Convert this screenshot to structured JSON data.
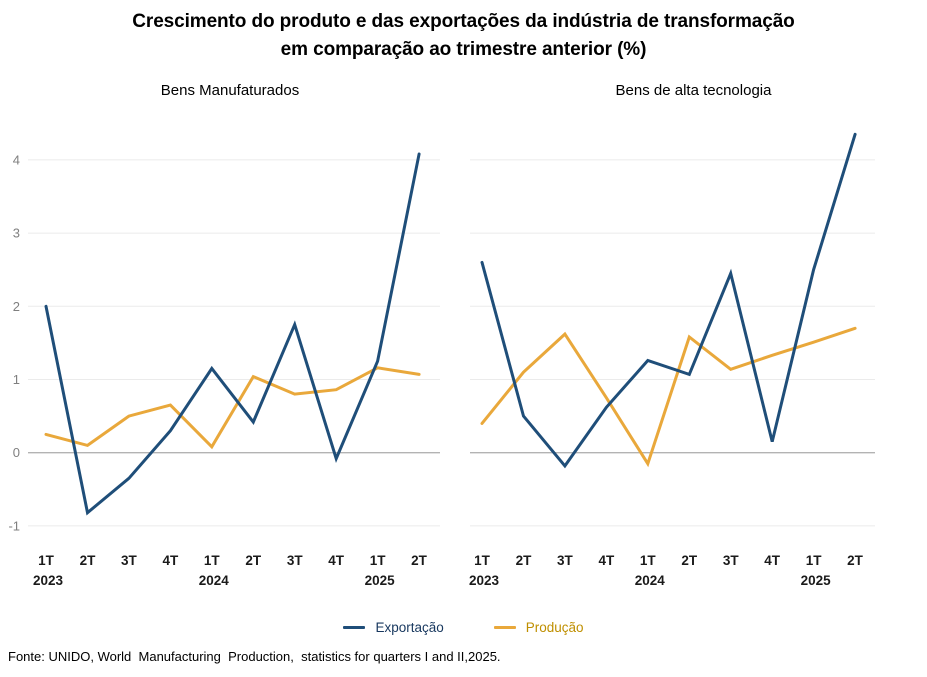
{
  "title": {
    "line1": "Crescimento do produto e das exportações da indústria de transformação",
    "line2": "em comparação ao trimestre anterior (%)"
  },
  "legend": {
    "items": [
      {
        "label": "Exportação",
        "color": "#1f4e79",
        "text_color": "#17375e"
      },
      {
        "label": "Produção",
        "color": "#e9a83b",
        "text_color": "#bf8f00"
      }
    ]
  },
  "source": "Fonte: UNIDO, World  Manufacturing  Production,  statistics for quarters I and II,2025.",
  "colors": {
    "exportacao_line": "#1f4e79",
    "producao_line": "#e9a83b",
    "gridline": "#ebebeb",
    "zero_line": "#b3b3b3",
    "y_tick_text": "#7f7f7f",
    "x_tick_text": "#1a1a1a"
  },
  "chart_data": [
    {
      "type": "line",
      "title": "Bens Manufaturados",
      "categories": [
        "1T 2023",
        "2T 2023",
        "3T 2023",
        "4T 2023",
        "1T 2024",
        "2T 2024",
        "3T 2024",
        "4T 2024",
        "1T 2025",
        "2T 2025"
      ],
      "x_tick_labels": [
        "1T",
        "2T",
        "3T",
        "4T",
        "1T",
        "2T",
        "3T",
        "4T",
        "1T",
        "2T"
      ],
      "year_labels": [
        {
          "index": 0,
          "label": "2023"
        },
        {
          "index": 4,
          "label": "2024"
        },
        {
          "index": 8,
          "label": "2025"
        }
      ],
      "yticks": [
        4,
        3,
        2,
        1,
        0,
        -1
      ],
      "ylim": [
        -1.3,
        4.45
      ],
      "grid": true,
      "legend_position": "bottom",
      "series": [
        {
          "name": "Exportação",
          "color": "#1f4e79",
          "values": [
            2.0,
            -0.82,
            -0.35,
            0.3,
            1.15,
            0.42,
            1.75,
            -0.08,
            1.25,
            4.08
          ]
        },
        {
          "name": "Produção",
          "color": "#e9a83b",
          "values": [
            0.25,
            0.1,
            0.5,
            0.65,
            0.08,
            1.04,
            0.8,
            0.86,
            1.16,
            1.07
          ]
        }
      ]
    },
    {
      "type": "line",
      "title": "Bens de alta tecnologia",
      "categories": [
        "1T 2023",
        "2T 2023",
        "3T 2023",
        "4T 2023",
        "1T 2024",
        "2T 2024",
        "3T 2024",
        "4T 2024",
        "1T 2025",
        "2T 2025"
      ],
      "x_tick_labels": [
        "1T",
        "2T",
        "3T",
        "4T",
        "1T",
        "2T",
        "3T",
        "4T",
        "1T",
        "2T"
      ],
      "year_labels": [
        {
          "index": 0,
          "label": "2023"
        },
        {
          "index": 4,
          "label": "2024"
        },
        {
          "index": 8,
          "label": "2025"
        }
      ],
      "yticks": [
        4,
        3,
        2,
        1,
        0,
        -1
      ],
      "ylim": [
        -1.3,
        4.45
      ],
      "grid": true,
      "legend_position": "bottom",
      "series": [
        {
          "name": "Exportação",
          "color": "#1f4e79",
          "values": [
            2.6,
            0.5,
            -0.18,
            0.62,
            1.26,
            1.07,
            2.45,
            0.15,
            2.5,
            4.35
          ]
        },
        {
          "name": "Produção",
          "color": "#e9a83b",
          "values": [
            0.4,
            1.1,
            1.62,
            0.75,
            -0.15,
            1.58,
            1.14,
            1.33,
            1.51,
            1.7
          ]
        }
      ]
    }
  ]
}
